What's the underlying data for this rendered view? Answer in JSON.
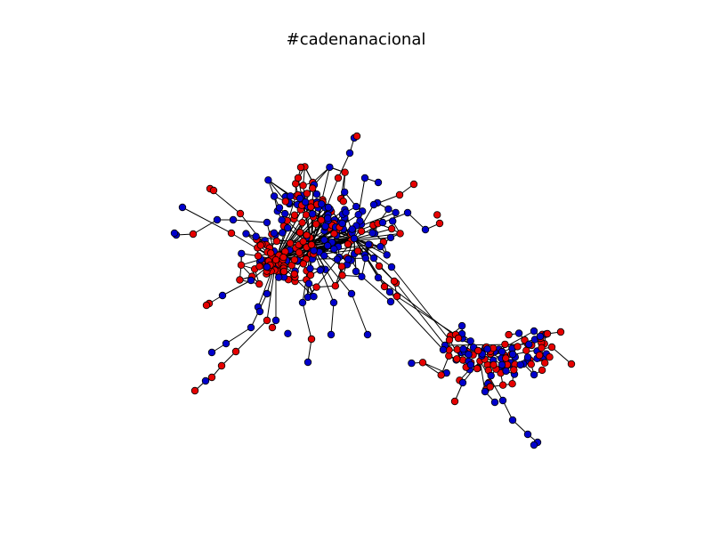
{
  "figure": {
    "title": "#cadenanacional"
  },
  "colors": {
    "background": "#ffffff",
    "edge": "#000000",
    "node_red": "#e60000",
    "node_blue": "#0000cc",
    "node_outline": "#000000"
  },
  "legend": null
}
